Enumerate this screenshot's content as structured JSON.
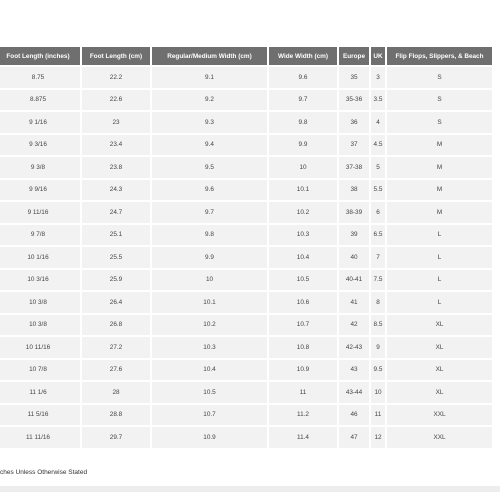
{
  "table": {
    "headers": [
      "Foot Length (inches)",
      "Foot Length (cm)",
      "Regular/Medium Width (cm)",
      "Wide Width (cm)",
      "Europe",
      "UK",
      "Flip Flops, Slippers, & Beach"
    ],
    "rows": [
      [
        "8.75",
        "22.2",
        "9.1",
        "9.6",
        "35",
        "3",
        "S"
      ],
      [
        "8.875",
        "22.6",
        "9.2",
        "9.7",
        "35-36",
        "3.5",
        "S"
      ],
      [
        "9 1/16",
        "23",
        "9.3",
        "9.8",
        "36",
        "4",
        "S"
      ],
      [
        "9 3/16",
        "23.4",
        "9.4",
        "9.9",
        "37",
        "4.5",
        "M"
      ],
      [
        "9 3/8",
        "23.8",
        "9.5",
        "10",
        "37-38",
        "5",
        "M"
      ],
      [
        "9 9/16",
        "24.3",
        "9.6",
        "10.1",
        "38",
        "5.5",
        "M"
      ],
      [
        "9 11/16",
        "24.7",
        "9.7",
        "10.2",
        "38-39",
        "6",
        "M"
      ],
      [
        "9 7/8",
        "25.1",
        "9.8",
        "10.3",
        "39",
        "6.5",
        "L"
      ],
      [
        "10 1/16",
        "25.5",
        "9.9",
        "10.4",
        "40",
        "7",
        "L"
      ],
      [
        "10 3/16",
        "25.9",
        "10",
        "10.5",
        "40-41",
        "7.5",
        "L"
      ],
      [
        "10 3/8",
        "26.4",
        "10.1",
        "10.6",
        "41",
        "8",
        "L"
      ],
      [
        "10 3/8",
        "26.8",
        "10.2",
        "10.7",
        "42",
        "8.5",
        "XL"
      ],
      [
        "10 11/16",
        "27.2",
        "10.3",
        "10.8",
        "42-43",
        "9",
        "XL"
      ],
      [
        "10 7/8",
        "27.6",
        "10.4",
        "10.9",
        "43",
        "9.5",
        "XL"
      ],
      [
        "11 1/6",
        "28",
        "10.5",
        "11",
        "43-44",
        "10",
        "XL"
      ],
      [
        "11 5/16",
        "28.8",
        "10.7",
        "11.2",
        "46",
        "11",
        "XXL"
      ],
      [
        "11 11/16",
        "29.7",
        "10.9",
        "11.4",
        "47",
        "12",
        "XXL"
      ]
    ]
  },
  "note": "ches Unless Otherwise Stated"
}
